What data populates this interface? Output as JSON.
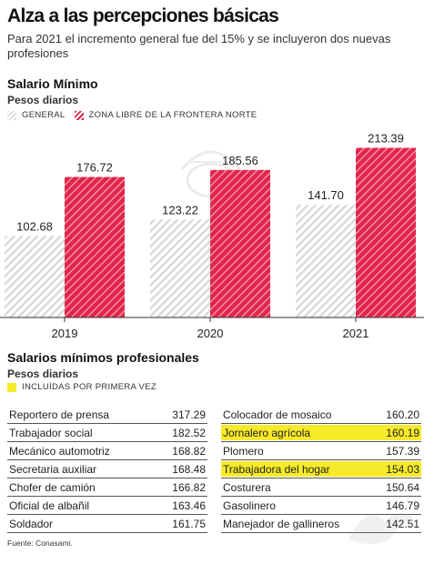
{
  "header": {
    "title": "Alza a las percepciones básicas",
    "subtitle": "Para 2021 el incremento general fue del 15% y se incluyeron dos nuevas profesiones"
  },
  "salario_minimo": {
    "title": "Salario Mínimo",
    "subtitle": "Pesos diarios",
    "legend": {
      "general": "GENERAL",
      "zona": "ZONA LIBRE DE LA FRONTERA NORTE"
    }
  },
  "profesionales": {
    "title": "Salarios mínimos profesionales",
    "subtitle": "Pesos diarios",
    "legend": "INCLUÍDAS POR PRIMERA VEZ",
    "left": [
      {
        "name": "Reportero de prensa",
        "value": "317.29",
        "new": false
      },
      {
        "name": "Trabajador social",
        "value": "182.52",
        "new": false
      },
      {
        "name": "Mecánico automotriz",
        "value": "168.82",
        "new": false
      },
      {
        "name": "Secretaria auxiliar",
        "value": "168.48",
        "new": false
      },
      {
        "name": "Chofer de camión",
        "value": "166.82",
        "new": false
      },
      {
        "name": "Oficial de albañil",
        "value": "163.46",
        "new": false
      },
      {
        "name": "Soldador",
        "value": "161.75",
        "new": false
      }
    ],
    "right": [
      {
        "name": "Colocador de mosaico",
        "value": "160.20",
        "new": false
      },
      {
        "name": "Jornalero agrícola",
        "value": "160.19",
        "new": true
      },
      {
        "name": "Plomero",
        "value": "157.39",
        "new": false
      },
      {
        "name": "Trabajadora del hogar",
        "value": "154.03",
        "new": true
      },
      {
        "name": "Costurera",
        "value": "150.64",
        "new": false
      },
      {
        "name": "Gasolinero",
        "value": "146.79",
        "new": false
      },
      {
        "name": "Manejador de gallineros",
        "value": "142.51",
        "new": false
      }
    ]
  },
  "source": "Fuente: Conasami.",
  "colors": {
    "zona": "#e2254b",
    "general": "#d9d9d9",
    "highlight": "#f7ea2a"
  },
  "chart_data": {
    "type": "bar",
    "categories": [
      "2019",
      "2020",
      "2021"
    ],
    "series": [
      {
        "name": "GENERAL",
        "values": [
          102.68,
          123.22,
          141.7
        ]
      },
      {
        "name": "ZONA LIBRE DE LA FRONTERA NORTE",
        "values": [
          176.72,
          185.56,
          213.39
        ]
      }
    ],
    "ylim": [
      0,
      230
    ],
    "grid": false,
    "legend": "top-left"
  }
}
